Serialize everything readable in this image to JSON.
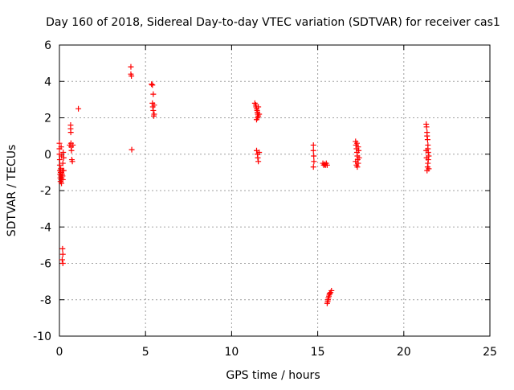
{
  "chart_data": {
    "type": "scatter",
    "title": "Day 160 of 2018, Sidereal Day-to-day VTEC variation (SDTVAR) for receiver cas1",
    "xlabel": "GPS time / hours",
    "ylabel": "SDTVAR / TECUs",
    "xlim": [
      0,
      25
    ],
    "ylim": [
      -10,
      6
    ],
    "xticks": [
      0,
      5,
      10,
      15,
      20,
      25
    ],
    "xtick_labels": [
      "0",
      "5",
      "10",
      "15",
      "20",
      "25"
    ],
    "yticks": [
      -10,
      -8,
      -6,
      -4,
      -2,
      0,
      2,
      4,
      6
    ],
    "ytick_labels": [
      "-10",
      "-8",
      "-6",
      "-4",
      "-2",
      "0",
      "2",
      "4",
      "6"
    ],
    "grid": true,
    "marker": "+",
    "color": "#ff0000",
    "series": [
      {
        "name": "cas1",
        "points": [
          [
            0.0,
            0.6
          ],
          [
            0.0,
            0.3
          ],
          [
            0.0,
            0.0
          ],
          [
            0.02,
            -0.3
          ],
          [
            0.02,
            -0.6
          ],
          [
            0.03,
            -0.9
          ],
          [
            0.04,
            -1.1
          ],
          [
            0.05,
            -1.3
          ],
          [
            0.06,
            -1.5
          ],
          [
            0.07,
            -1.0
          ],
          [
            0.08,
            -0.8
          ],
          [
            0.09,
            -1.2
          ],
          [
            0.1,
            -1.4
          ],
          [
            0.12,
            -1.6
          ],
          [
            0.13,
            -1.3
          ],
          [
            0.15,
            -1.1
          ],
          [
            0.17,
            -0.9
          ],
          [
            0.18,
            -1.2
          ],
          [
            0.2,
            -1.4
          ],
          [
            0.22,
            0.1
          ],
          [
            0.25,
            -0.2
          ],
          [
            0.25,
            -0.9
          ],
          [
            0.1,
            0.4
          ],
          [
            0.12,
            -0.1
          ],
          [
            0.2,
            -0.5
          ],
          [
            0.18,
            -5.2
          ],
          [
            0.2,
            -5.5
          ],
          [
            0.16,
            -5.8
          ],
          [
            0.2,
            -6.0
          ],
          [
            0.65,
            1.6
          ],
          [
            0.65,
            1.4
          ],
          [
            0.66,
            1.2
          ],
          [
            0.67,
            0.6
          ],
          [
            0.68,
            0.4
          ],
          [
            0.7,
            0.2
          ],
          [
            0.72,
            -0.3
          ],
          [
            0.75,
            -0.4
          ],
          [
            0.78,
            0.5
          ],
          [
            0.6,
            0.5
          ],
          [
            1.1,
            2.5
          ],
          [
            4.15,
            4.8
          ],
          [
            4.15,
            4.4
          ],
          [
            4.18,
            4.3
          ],
          [
            4.2,
            0.25
          ],
          [
            5.35,
            3.85
          ],
          [
            5.4,
            3.8
          ],
          [
            5.45,
            3.3
          ],
          [
            5.4,
            2.8
          ],
          [
            5.42,
            2.6
          ],
          [
            5.45,
            2.4
          ],
          [
            5.5,
            2.2
          ],
          [
            5.48,
            2.1
          ],
          [
            5.5,
            2.7
          ],
          [
            11.35,
            2.8
          ],
          [
            11.4,
            2.7
          ],
          [
            11.42,
            2.6
          ],
          [
            11.45,
            2.5
          ],
          [
            11.48,
            2.4
          ],
          [
            11.5,
            2.3
          ],
          [
            11.52,
            2.2
          ],
          [
            11.55,
            2.1
          ],
          [
            11.5,
            2.0
          ],
          [
            11.45,
            1.9
          ],
          [
            11.55,
            2.6
          ],
          [
            11.6,
            2.2
          ],
          [
            11.45,
            0.2
          ],
          [
            11.5,
            0.0
          ],
          [
            11.52,
            -0.2
          ],
          [
            11.55,
            -0.4
          ],
          [
            11.6,
            0.1
          ],
          [
            14.75,
            0.5
          ],
          [
            14.75,
            0.2
          ],
          [
            14.77,
            -0.1
          ],
          [
            14.78,
            -0.4
          ],
          [
            14.75,
            -0.7
          ],
          [
            15.3,
            -0.5
          ],
          [
            15.35,
            -0.6
          ],
          [
            15.4,
            -0.55
          ],
          [
            15.45,
            -0.6
          ],
          [
            15.5,
            -0.5
          ],
          [
            15.55,
            -0.6
          ],
          [
            15.55,
            -8.2
          ],
          [
            15.58,
            -8.1
          ],
          [
            15.6,
            -8.0
          ],
          [
            15.62,
            -7.9
          ],
          [
            15.65,
            -7.8
          ],
          [
            15.68,
            -7.7
          ],
          [
            15.7,
            -7.65
          ],
          [
            15.75,
            -7.6
          ],
          [
            15.8,
            -7.5
          ],
          [
            17.2,
            0.7
          ],
          [
            17.22,
            0.5
          ],
          [
            17.25,
            0.3
          ],
          [
            17.28,
            0.1
          ],
          [
            17.3,
            -0.1
          ],
          [
            17.32,
            -0.3
          ],
          [
            17.35,
            -0.5
          ],
          [
            17.3,
            -0.7
          ],
          [
            17.25,
            -0.6
          ],
          [
            17.28,
            0.6
          ],
          [
            17.35,
            0.4
          ],
          [
            17.2,
            -0.4
          ],
          [
            17.38,
            0.2
          ],
          [
            17.4,
            -0.2
          ],
          [
            21.3,
            1.65
          ],
          [
            21.32,
            1.5
          ],
          [
            21.35,
            1.2
          ],
          [
            21.35,
            1.0
          ],
          [
            21.38,
            0.8
          ],
          [
            21.4,
            0.5
          ],
          [
            21.4,
            0.3
          ],
          [
            21.42,
            0.1
          ],
          [
            21.45,
            -0.1
          ],
          [
            21.42,
            -0.3
          ],
          [
            21.4,
            -0.5
          ],
          [
            21.38,
            -0.7
          ],
          [
            21.35,
            -0.9
          ],
          [
            21.45,
            -0.8
          ],
          [
            21.3,
            0.2
          ],
          [
            21.32,
            -0.2
          ]
        ]
      }
    ]
  }
}
